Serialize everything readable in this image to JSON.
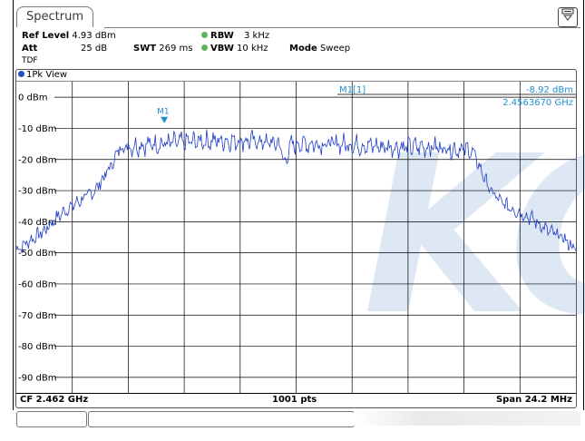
{
  "window": {
    "tab_label": "Spectrum",
    "menu_icon": "menu-icon"
  },
  "settings": {
    "ref_level_label": "Ref Level",
    "ref_level_value": "4.93 dBm",
    "att_label": "Att",
    "att_value": "25 dB",
    "swt_label": "SWT",
    "swt_value": "269 ms",
    "rbw_label": "RBW",
    "rbw_value": "3 kHz",
    "vbw_label": "VBW",
    "vbw_value": "10 kHz",
    "mode_label": "Mode",
    "mode_value": "Sweep",
    "tdf_label": "TDF"
  },
  "view": {
    "label": "1Pk View"
  },
  "marker": {
    "name": "M1[1]",
    "level": "-8.92 dBm",
    "freq": "2.4563670 GHz",
    "tag": "M1"
  },
  "footer": {
    "center": "CF 2.462 GHz",
    "points": "1001 pts",
    "span": "Span 24.2 MHz"
  },
  "watermark": "KC",
  "colors": {
    "trace": "#1e3cc8",
    "marker": "#1e90d0",
    "grid": "#000000",
    "status_green": "#5fb35f"
  },
  "chart_data": {
    "type": "line",
    "xlabel": "",
    "ylabel": "",
    "x_center_ghz": 2.462,
    "span_mhz": 24.2,
    "points": 1001,
    "ylim": [
      -95,
      5
    ],
    "y_ticks": [
      "0 dBm",
      "-10 dBm",
      "-20 dBm",
      "-30 dBm",
      "-40 dBm",
      "-50 dBm",
      "-60 dBm",
      "-70 dBm",
      "-80 dBm",
      "-90 dBm"
    ],
    "y_tick_values": [
      0,
      -10,
      -20,
      -30,
      -40,
      -50,
      -60,
      -70,
      -80,
      -90
    ],
    "series": [
      {
        "x_mhz": [
          -12.1,
          -11.5,
          -10.9,
          -10.4,
          -9.9,
          -9.3,
          -8.7,
          -8.0,
          -7.6,
          -6.0,
          -4.0,
          -2.0,
          -0.7,
          -0.5,
          -0.3,
          0.0,
          2.0,
          4.0,
          6.0,
          7.6,
          8.4,
          8.9,
          9.4,
          10.2,
          10.9,
          11.5,
          12.1
        ],
        "dbm": [
          -49,
          -46,
          -43,
          -39,
          -36,
          -33,
          -30,
          -22,
          -16,
          -15,
          -14,
          -14,
          -15,
          -22,
          -16,
          -15,
          -15,
          -16,
          -16,
          -17,
          -30,
          -34,
          -36,
          -39,
          -43,
          -45,
          -49
        ]
      }
    ],
    "marker": {
      "x_mhz": -5.7,
      "dbm": -8.92
    }
  }
}
